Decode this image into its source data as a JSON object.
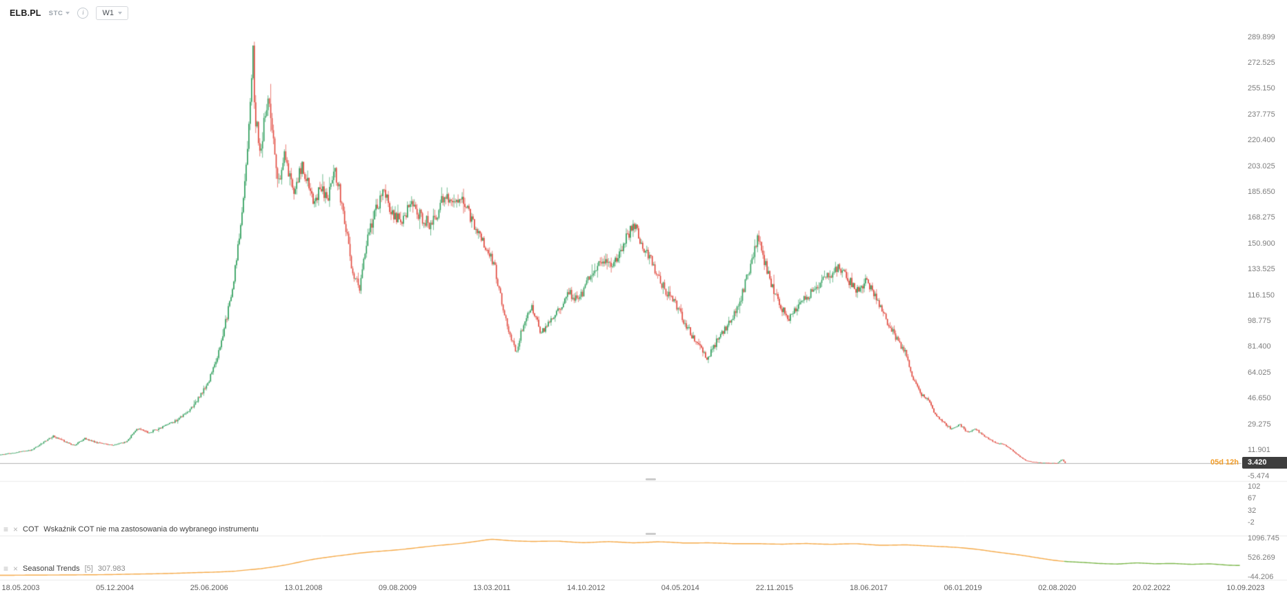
{
  "toolbar": {
    "symbol": "ELB.PL",
    "category": "STC",
    "timeframe": "W1"
  },
  "price_line": {
    "countdown": "05d 12h",
    "price": "3.420"
  },
  "panes": {
    "cot": {
      "name": "COT",
      "message": "Wskaźnik COT nie ma zastosowania do wybranego instrumentu"
    },
    "seasonal": {
      "name": "Seasonal Trends",
      "params": "[5]",
      "value": "307.983"
    }
  },
  "colors": {
    "candle_up": "#2e9e5b",
    "candle_down": "#e0453a",
    "price_line": "#b2b2b2",
    "price_tag_bg": "#3e3e3e",
    "countdown": "#f29d29",
    "seasonal_line": "#f5a947",
    "seasonal_tail": "#7ab648"
  },
  "chart_data": [
    {
      "type": "candlestick",
      "name": "ELB.PL weekly (W1) candlestick",
      "last_price": 3.42,
      "bar_countdown": "05d 12h",
      "data_ends_near": "02.08.2020",
      "y_axis": {
        "position": "right",
        "range": [
          -5.474,
          289.899
        ],
        "ticks": [
          "289.899",
          "272.525",
          "255.150",
          "237.775",
          "220.400",
          "203.025",
          "185.650",
          "168.275",
          "150.900",
          "133.525",
          "116.150",
          "98.775",
          "81.400",
          "64.025",
          "46.650",
          "29.275",
          "11.901",
          "-5.474"
        ]
      },
      "x_axis": {
        "type": "time",
        "labels": [
          "18.05.2003",
          "05.12.2004",
          "25.06.2006",
          "13.01.2008",
          "09.08.2009",
          "13.03.2011",
          "14.10.2012",
          "04.05.2014",
          "22.11.2015",
          "18.06.2017",
          "06.01.2019",
          "02.08.2020",
          "20.02.2022",
          "10.09.2023"
        ]
      },
      "price_path_keypoints": [
        [
          0.0,
          9.0
        ],
        [
          0.012,
          10.5
        ],
        [
          0.025,
          12.0
        ],
        [
          0.043,
          21.5
        ],
        [
          0.052,
          18.0
        ],
        [
          0.06,
          15.0
        ],
        [
          0.068,
          20.0
        ],
        [
          0.078,
          17.0
        ],
        [
          0.09,
          15.5
        ],
        [
          0.102,
          17.5
        ],
        [
          0.11,
          26.5
        ],
        [
          0.12,
          24.0
        ],
        [
          0.132,
          28.0
        ],
        [
          0.142,
          32.0
        ],
        [
          0.152,
          38.0
        ],
        [
          0.16,
          47.0
        ],
        [
          0.168,
          58.0
        ],
        [
          0.175,
          74.0
        ],
        [
          0.181,
          95.0
        ],
        [
          0.187,
          120.0
        ],
        [
          0.192,
          150.0
        ],
        [
          0.196,
          180.0
        ],
        [
          0.2,
          225.0
        ],
        [
          0.2025,
          258.0
        ],
        [
          0.2035,
          290.0
        ],
        [
          0.2045,
          245.0
        ],
        [
          0.2065,
          232.0
        ],
        [
          0.21,
          208.0
        ],
        [
          0.2135,
          238.0
        ],
        [
          0.2165,
          247.0
        ],
        [
          0.2205,
          215.0
        ],
        [
          0.2245,
          190.0
        ],
        [
          0.229,
          212.0
        ],
        [
          0.233,
          199.0
        ],
        [
          0.238,
          184.0
        ],
        [
          0.243,
          205.0
        ],
        [
          0.248,
          192.0
        ],
        [
          0.253,
          178.0
        ],
        [
          0.259,
          190.0
        ],
        [
          0.264,
          180.0
        ],
        [
          0.269,
          202.0
        ],
        [
          0.2735,
          186.0
        ],
        [
          0.279,
          158.0
        ],
        [
          0.285,
          128.0
        ],
        [
          0.29,
          122.0
        ],
        [
          0.295,
          150.0
        ],
        [
          0.301,
          170.0
        ],
        [
          0.309,
          186.0
        ],
        [
          0.316,
          172.0
        ],
        [
          0.323,
          167.0
        ],
        [
          0.331,
          176.0
        ],
        [
          0.339,
          169.0
        ],
        [
          0.346,
          164.0
        ],
        [
          0.353,
          172.0
        ],
        [
          0.358,
          186.0
        ],
        [
          0.364,
          177.0
        ],
        [
          0.371,
          180.0
        ],
        [
          0.378,
          171.0
        ],
        [
          0.386,
          158.0
        ],
        [
          0.393,
          147.0
        ],
        [
          0.399,
          133.0
        ],
        [
          0.405,
          108.0
        ],
        [
          0.411,
          89.0
        ],
        [
          0.416,
          79.0
        ],
        [
          0.421,
          95.0
        ],
        [
          0.428,
          110.0
        ],
        [
          0.436,
          91.0
        ],
        [
          0.443,
          100.0
        ],
        [
          0.451,
          108.0
        ],
        [
          0.458,
          118.0
        ],
        [
          0.466,
          112.0
        ],
        [
          0.473,
          125.0
        ],
        [
          0.484,
          141.0
        ],
        [
          0.493,
          134.0
        ],
        [
          0.503,
          152.0
        ],
        [
          0.51,
          165.0
        ],
        [
          0.518,
          149.0
        ],
        [
          0.526,
          137.0
        ],
        [
          0.536,
          119.0
        ],
        [
          0.543,
          112.0
        ],
        [
          0.551,
          99.0
        ],
        [
          0.561,
          84.0
        ],
        [
          0.57,
          74.0
        ],
        [
          0.579,
          88.0
        ],
        [
          0.589,
          100.0
        ],
        [
          0.596,
          112.0
        ],
        [
          0.606,
          140.0
        ],
        [
          0.61,
          156.0
        ],
        [
          0.616,
          139.0
        ],
        [
          0.623,
          119.0
        ],
        [
          0.63,
          107.0
        ],
        [
          0.636,
          101.0
        ],
        [
          0.646,
          112.0
        ],
        [
          0.656,
          120.0
        ],
        [
          0.665,
          128.0
        ],
        [
          0.676,
          135.0
        ],
        [
          0.683,
          127.0
        ],
        [
          0.691,
          119.0
        ],
        [
          0.698,
          127.0
        ],
        [
          0.704,
          117.0
        ],
        [
          0.711,
          104.0
        ],
        [
          0.717,
          95.0
        ],
        [
          0.724,
          84.0
        ],
        [
          0.729,
          78.0
        ],
        [
          0.735,
          61.0
        ],
        [
          0.742,
          50.0
        ],
        [
          0.748,
          45.0
        ],
        [
          0.753,
          37.0
        ],
        [
          0.759,
          31.0
        ],
        [
          0.766,
          26.5
        ],
        [
          0.773,
          29.0
        ],
        [
          0.779,
          24.5
        ],
        [
          0.786,
          26.0
        ],
        [
          0.793,
          21.5
        ],
        [
          0.801,
          17.5
        ],
        [
          0.809,
          15.5
        ],
        [
          0.816,
          11.5
        ],
        [
          0.821,
          8.0
        ],
        [
          0.826,
          5.2
        ],
        [
          0.831,
          4.2
        ],
        [
          0.839,
          3.6
        ],
        [
          0.846,
          3.4
        ],
        [
          0.852,
          3.4
        ],
        [
          0.8555,
          6.0
        ],
        [
          0.858,
          3.42
        ]
      ]
    },
    {
      "type": "line",
      "name": "COT",
      "message": "Wskaźnik COT nie ma zastosowania do wybranego instrumentu",
      "y_axis": {
        "position": "right",
        "ticks": [
          "102",
          "67",
          "32",
          "-2"
        ]
      },
      "points": []
    },
    {
      "type": "line",
      "name": "Seasonal Trends",
      "params": "[5]",
      "current_value": 307.983,
      "y_axis": {
        "position": "right",
        "range": [
          -44.206,
          1096.745
        ],
        "ticks": [
          "1096.745",
          "526.269",
          "-44.206"
        ]
      },
      "colors": {
        "line": "#f5a947",
        "tail": "#7ab648"
      },
      "tail_start_t": 0.857,
      "value_path_keypoints": [
        [
          0.0,
          5
        ],
        [
          0.03,
          12
        ],
        [
          0.06,
          18
        ],
        [
          0.09,
          30
        ],
        [
          0.12,
          46
        ],
        [
          0.15,
          70
        ],
        [
          0.17,
          95
        ],
        [
          0.19,
          135
        ],
        [
          0.21,
          205
        ],
        [
          0.23,
          320
        ],
        [
          0.25,
          455
        ],
        [
          0.27,
          565
        ],
        [
          0.29,
          655
        ],
        [
          0.31,
          725
        ],
        [
          0.33,
          805
        ],
        [
          0.35,
          880
        ],
        [
          0.37,
          950
        ],
        [
          0.385,
          1010
        ],
        [
          0.396,
          1058
        ],
        [
          0.41,
          1022
        ],
        [
          0.43,
          1000
        ],
        [
          0.45,
          1012
        ],
        [
          0.47,
          982
        ],
        [
          0.49,
          1002
        ],
        [
          0.51,
          968
        ],
        [
          0.53,
          986
        ],
        [
          0.55,
          950
        ],
        [
          0.57,
          966
        ],
        [
          0.59,
          940
        ],
        [
          0.61,
          955
        ],
        [
          0.63,
          925
        ],
        [
          0.65,
          942
        ],
        [
          0.67,
          912
        ],
        [
          0.69,
          926
        ],
        [
          0.71,
          896
        ],
        [
          0.73,
          906
        ],
        [
          0.75,
          880
        ],
        [
          0.76,
          862
        ],
        [
          0.77,
          832
        ],
        [
          0.78,
          792
        ],
        [
          0.79,
          752
        ],
        [
          0.8,
          702
        ],
        [
          0.81,
          652
        ],
        [
          0.82,
          600
        ],
        [
          0.83,
          546
        ],
        [
          0.84,
          496
        ],
        [
          0.85,
          452
        ],
        [
          0.857,
          425
        ],
        [
          0.87,
          395
        ],
        [
          0.885,
          362
        ],
        [
          0.9,
          348
        ],
        [
          0.915,
          368
        ],
        [
          0.93,
          335
        ],
        [
          0.945,
          352
        ],
        [
          0.96,
          322
        ],
        [
          0.975,
          338
        ],
        [
          0.99,
          312
        ],
        [
          1.0,
          308
        ]
      ]
    }
  ]
}
